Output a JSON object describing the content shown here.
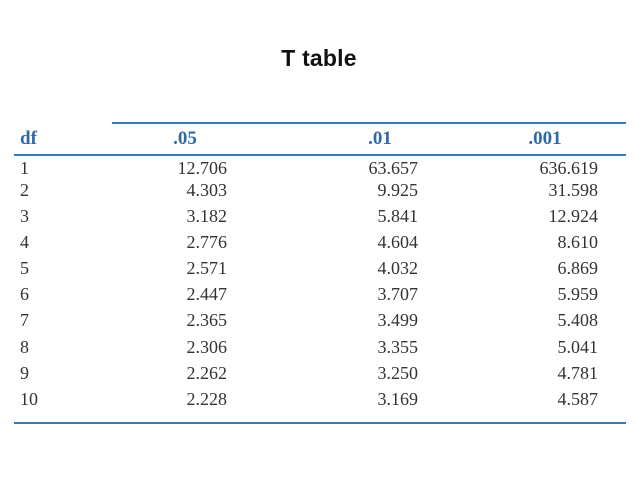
{
  "title": "T table",
  "colors": {
    "header_text": "#2e6aa8",
    "rule": "#3a78b5",
    "body_text": "#333333"
  },
  "table": {
    "headers": [
      "df",
      ".05",
      ".01",
      ".001"
    ],
    "rows": [
      [
        "1",
        "12.706",
        "63.657",
        "636.619"
      ],
      [
        "2",
        "4.303",
        "9.925",
        "31.598"
      ],
      [
        "3",
        "3.182",
        "5.841",
        "12.924"
      ],
      [
        "4",
        "2.776",
        "4.604",
        "8.610"
      ],
      [
        "5",
        "2.571",
        "4.032",
        "6.869"
      ],
      [
        "6",
        "2.447",
        "3.707",
        "5.959"
      ],
      [
        "7",
        "2.365",
        "3.499",
        "5.408"
      ],
      [
        "8",
        "2.306",
        "3.355",
        "5.041"
      ],
      [
        "9",
        "2.262",
        "3.250",
        "4.781"
      ],
      [
        "10",
        "2.228",
        "3.169",
        "4.587"
      ]
    ]
  }
}
